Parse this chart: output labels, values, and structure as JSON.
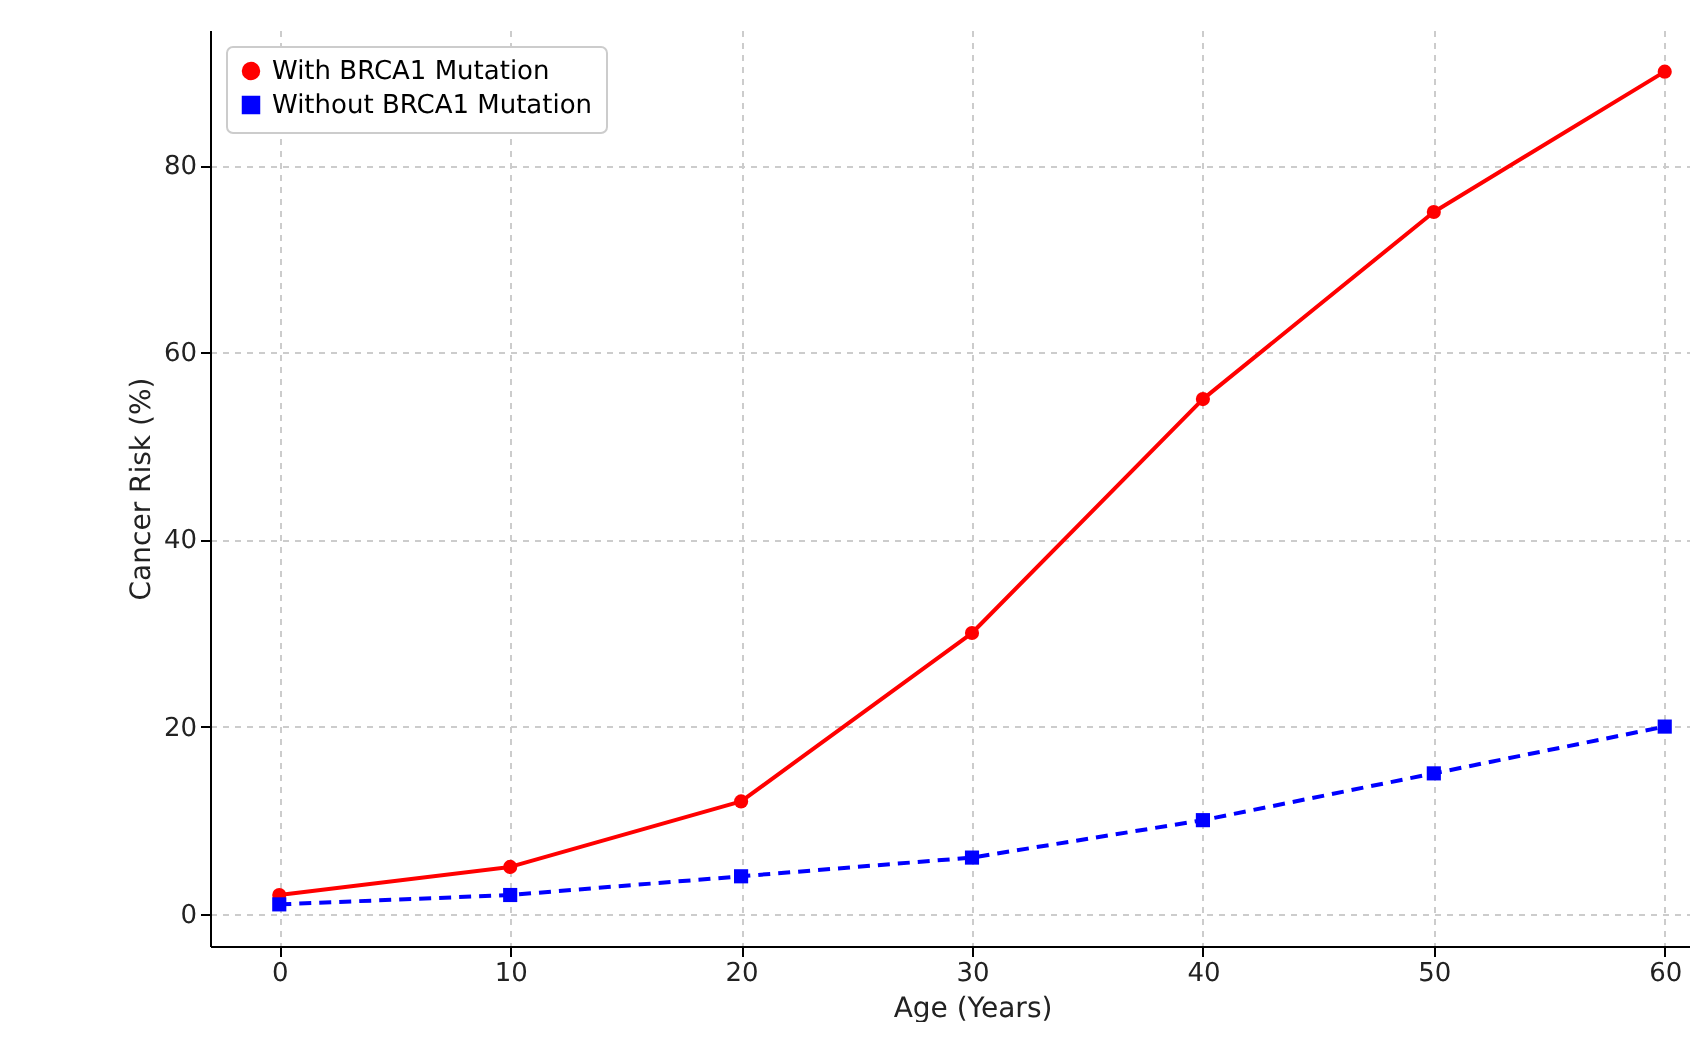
{
  "chart_data": {
    "type": "line",
    "xlabel": "Age (Years)",
    "ylabel": "Cancer Risk (%)",
    "x": [
      0,
      10,
      20,
      30,
      40,
      50,
      60
    ],
    "series": [
      {
        "name": "With BRCA1 Mutation",
        "color": "#ff0000",
        "values": [
          2,
          5,
          12,
          30,
          55,
          75,
          90
        ],
        "marker": "circle",
        "line_style": "solid"
      },
      {
        "name": "Without BRCA1 Mutation",
        "color": "#0000ff",
        "values": [
          1,
          2,
          4,
          6,
          10,
          15,
          20
        ],
        "marker": "square",
        "line_style": "dashed"
      }
    ],
    "xlim": [
      -3,
      63
    ],
    "xticks": [
      0,
      10,
      20,
      30,
      40,
      50,
      60
    ],
    "ylim": [
      -3.45,
      94.45
    ],
    "yticks": [
      0,
      20,
      40,
      60,
      80
    ],
    "grid": true,
    "legend": "top left"
  }
}
